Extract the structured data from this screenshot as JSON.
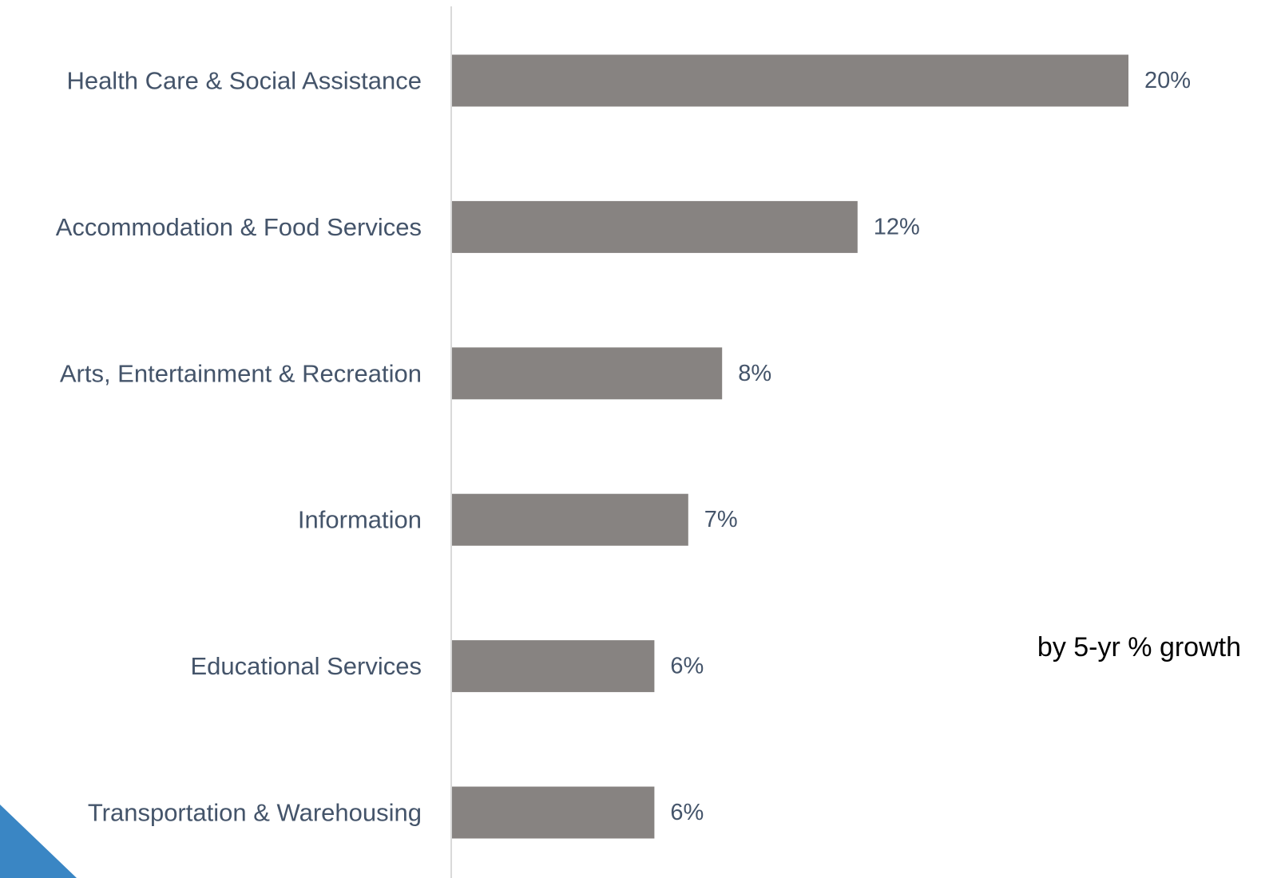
{
  "chart_data": {
    "type": "bar",
    "orientation": "horizontal",
    "categories": [
      "Health Care & Social Assistance",
      "Accommodation & Food Services",
      "Arts, Entertainment & Recreation",
      "Information",
      "Educational Services",
      "Transportation & Warehousing"
    ],
    "values": [
      20,
      12,
      8,
      7,
      6,
      6
    ],
    "value_labels": [
      "20%",
      "12%",
      "8%",
      "7%",
      "6%",
      "6%"
    ],
    "subtitle": "by 5-yr % growth",
    "xlim": [
      0,
      20
    ],
    "grid": false,
    "colors": {
      "bar": "#878381",
      "category_text": "#44546a",
      "value_text": "#44546a",
      "axis_line": "#d9d9d9",
      "corner_accent": "#3a86c4"
    }
  }
}
